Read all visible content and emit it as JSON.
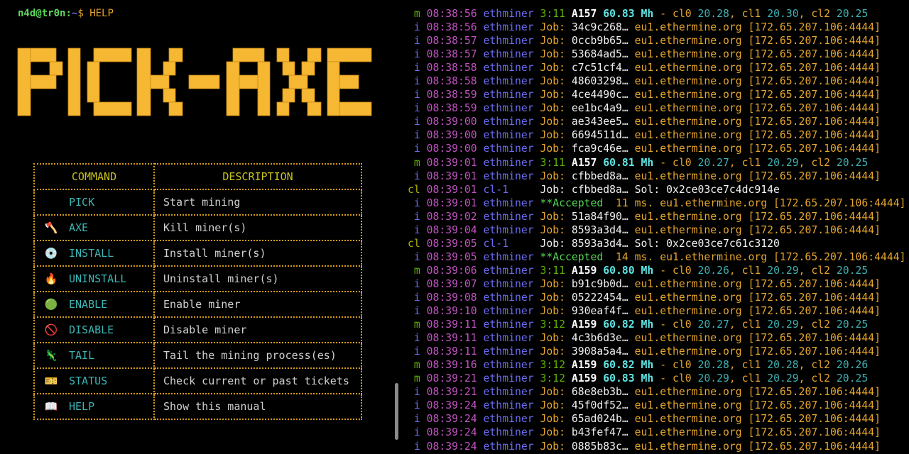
{
  "prompt": {
    "user": "n4d@tr0n",
    "colon": ":",
    "path": "~",
    "dollar": "$",
    "command": "HELP"
  },
  "logo": {
    "text": "PICK-AXE",
    "color": "#f6b733"
  },
  "table": {
    "headers": [
      "COMMAND",
      "DESCRIPTION"
    ],
    "rows": [
      {
        "icon": "pick-icon",
        "glyph": "⛏",
        "command": "PICK",
        "description": "Start mining"
      },
      {
        "icon": "axe-icon",
        "glyph": "🪓",
        "command": "AXE",
        "description": "Kill miner(s)"
      },
      {
        "icon": "disc-icon",
        "glyph": "💿",
        "command": "INSTALL",
        "description": "Install miner(s)"
      },
      {
        "icon": "fire-icon",
        "glyph": "🔥",
        "command": "UNINSTALL",
        "description": "Uninstall miner(s)"
      },
      {
        "icon": "green-circle-icon",
        "glyph": "🟢",
        "command": "ENABLE",
        "description": "Enable miner"
      },
      {
        "icon": "prohibited-icon",
        "glyph": "🚫",
        "command": "DISABLE",
        "description": "Disable miner"
      },
      {
        "icon": "lizard-icon",
        "glyph": "🦎",
        "command": "TAIL",
        "description": "Tail the mining process(es)"
      },
      {
        "icon": "ticket-icon",
        "glyph": "🎫",
        "command": "STATUS",
        "description": "Check current or past tickets"
      },
      {
        "icon": "book-icon",
        "glyph": "📖",
        "command": "HELP",
        "description": "Show this manual"
      }
    ]
  },
  "log": [
    {
      "kind": "m",
      "time": "08:38:56",
      "src": "ethminer",
      "uptime": "3:11",
      "shares": "A157",
      "rate": "60.83 Mh",
      "sep": "-",
      "gpus": [
        {
          "name": "cl0",
          "temp": "20.28"
        },
        {
          "name": "cl1",
          "temp": "20.30"
        },
        {
          "name": "cl2",
          "temp": "20.25"
        }
      ]
    },
    {
      "kind": "i",
      "time": "08:38:56",
      "src": "ethminer",
      "label": "Job:",
      "hash": "34c9c268…",
      "host": "eu1.ethermine.org",
      "addr": "[172.65.207.106:4444]"
    },
    {
      "kind": "i",
      "time": "08:38:57",
      "src": "ethminer",
      "label": "Job:",
      "hash": "0ccb9b65…",
      "host": "eu1.ethermine.org",
      "addr": "[172.65.207.106:4444]"
    },
    {
      "kind": "i",
      "time": "08:38:57",
      "src": "ethminer",
      "label": "Job:",
      "hash": "53684ad5…",
      "host": "eu1.ethermine.org",
      "addr": "[172.65.207.106:4444]"
    },
    {
      "kind": "i",
      "time": "08:38:58",
      "src": "ethminer",
      "label": "Job:",
      "hash": "c7c51cf4…",
      "host": "eu1.ethermine.org",
      "addr": "[172.65.207.106:4444]"
    },
    {
      "kind": "i",
      "time": "08:38:58",
      "src": "ethminer",
      "label": "Job:",
      "hash": "48603298…",
      "host": "eu1.ethermine.org",
      "addr": "[172.65.207.106:4444]"
    },
    {
      "kind": "i",
      "time": "08:38:59",
      "src": "ethminer",
      "label": "Job:",
      "hash": "4ce4490c…",
      "host": "eu1.ethermine.org",
      "addr": "[172.65.207.106:4444]"
    },
    {
      "kind": "i",
      "time": "08:38:59",
      "src": "ethminer",
      "label": "Job:",
      "hash": "ee1bc4a9…",
      "host": "eu1.ethermine.org",
      "addr": "[172.65.207.106:4444]"
    },
    {
      "kind": "i",
      "time": "08:39:00",
      "src": "ethminer",
      "label": "Job:",
      "hash": "ae343ee5…",
      "host": "eu1.ethermine.org",
      "addr": "[172.65.207.106:4444]"
    },
    {
      "kind": "i",
      "time": "08:39:00",
      "src": "ethminer",
      "label": "Job:",
      "hash": "6694511d…",
      "host": "eu1.ethermine.org",
      "addr": "[172.65.207.106:4444]"
    },
    {
      "kind": "i",
      "time": "08:39:00",
      "src": "ethminer",
      "label": "Job:",
      "hash": "fca9c46e…",
      "host": "eu1.ethermine.org",
      "addr": "[172.65.207.106:4444]"
    },
    {
      "kind": "m",
      "time": "08:39:01",
      "src": "ethminer",
      "uptime": "3:11",
      "shares": "A157",
      "rate": "60.81 Mh",
      "sep": "-",
      "gpus": [
        {
          "name": "cl0",
          "temp": "20.27"
        },
        {
          "name": "cl1",
          "temp": "20.29"
        },
        {
          "name": "cl2",
          "temp": "20.25"
        }
      ]
    },
    {
      "kind": "i",
      "time": "08:39:01",
      "src": "ethminer",
      "label": "Job:",
      "hash": "cfbbed8a…",
      "host": "eu1.ethermine.org",
      "addr": "[172.65.207.106:4444]"
    },
    {
      "kind": "cl",
      "time": "08:39:01",
      "src": "cl-1",
      "label": "Job:",
      "hash": "cfbbed8a…",
      "sol_label": "Sol:",
      "sol": "0x2ce03ce7c4dc914e"
    },
    {
      "kind": "a",
      "time": "08:39:01",
      "src": "ethminer",
      "status": "**Accepted",
      "latency": "11 ms.",
      "host": "eu1.ethermine.org",
      "addr": "[172.65.207.106:4444]"
    },
    {
      "kind": "i",
      "time": "08:39:02",
      "src": "ethminer",
      "label": "Job:",
      "hash": "51a84f90…",
      "host": "eu1.ethermine.org",
      "addr": "[172.65.207.106:4444]"
    },
    {
      "kind": "i",
      "time": "08:39:04",
      "src": "ethminer",
      "label": "Job:",
      "hash": "8593a3d4…",
      "host": "eu1.ethermine.org",
      "addr": "[172.65.207.106:4444]"
    },
    {
      "kind": "cl",
      "time": "08:39:05",
      "src": "cl-1",
      "label": "Job:",
      "hash": "8593a3d4…",
      "sol_label": "Sol:",
      "sol": "0x2ce03ce7c61c3120"
    },
    {
      "kind": "a",
      "time": "08:39:05",
      "src": "ethminer",
      "status": "**Accepted",
      "latency": "14 ms.",
      "host": "eu1.ethermine.org",
      "addr": "[172.65.207.106:4444]"
    },
    {
      "kind": "m",
      "time": "08:39:06",
      "src": "ethminer",
      "uptime": "3:11",
      "shares": "A159",
      "rate": "60.80 Mh",
      "sep": "-",
      "gpus": [
        {
          "name": "cl0",
          "temp": "20.26"
        },
        {
          "name": "cl1",
          "temp": "20.29"
        },
        {
          "name": "cl2",
          "temp": "20.25"
        }
      ]
    },
    {
      "kind": "i",
      "time": "08:39:07",
      "src": "ethminer",
      "label": "Job:",
      "hash": "b91c9b0d…",
      "host": "eu1.ethermine.org",
      "addr": "[172.65.207.106:4444]"
    },
    {
      "kind": "i",
      "time": "08:39:08",
      "src": "ethminer",
      "label": "Job:",
      "hash": "05222454…",
      "host": "eu1.ethermine.org",
      "addr": "[172.65.207.106:4444]"
    },
    {
      "kind": "i",
      "time": "08:39:10",
      "src": "ethminer",
      "label": "Job:",
      "hash": "930eaf4f…",
      "host": "eu1.ethermine.org",
      "addr": "[172.65.207.106:4444]"
    },
    {
      "kind": "m",
      "time": "08:39:11",
      "src": "ethminer",
      "uptime": "3:12",
      "shares": "A159",
      "rate": "60.82 Mh",
      "sep": "-",
      "gpus": [
        {
          "name": "cl0",
          "temp": "20.27"
        },
        {
          "name": "cl1",
          "temp": "20.29"
        },
        {
          "name": "cl2",
          "temp": "20.25"
        }
      ]
    },
    {
      "kind": "i",
      "time": "08:39:11",
      "src": "ethminer",
      "label": "Job:",
      "hash": "4c3b6d3e…",
      "host": "eu1.ethermine.org",
      "addr": "[172.65.207.106:4444]"
    },
    {
      "kind": "i",
      "time": "08:39:11",
      "src": "ethminer",
      "label": "Job:",
      "hash": "3908a5a4…",
      "host": "eu1.ethermine.org",
      "addr": "[172.65.207.106:4444]"
    },
    {
      "kind": "m",
      "time": "08:39:16",
      "src": "ethminer",
      "uptime": "3:12",
      "shares": "A159",
      "rate": "60.82 Mh",
      "sep": "-",
      "gpus": [
        {
          "name": "cl0",
          "temp": "20.28"
        },
        {
          "name": "cl1",
          "temp": "20.28"
        },
        {
          "name": "cl2",
          "temp": "20.26"
        }
      ]
    },
    {
      "kind": "m",
      "time": "08:39:21",
      "src": "ethminer",
      "uptime": "3:12",
      "shares": "A159",
      "rate": "60.83 Mh",
      "sep": "-",
      "gpus": [
        {
          "name": "cl0",
          "temp": "20.29"
        },
        {
          "name": "cl1",
          "temp": "20.29"
        },
        {
          "name": "cl2",
          "temp": "20.25"
        }
      ]
    },
    {
      "kind": "i",
      "time": "08:39:21",
      "src": "ethminer",
      "label": "Job:",
      "hash": "68e8eb3b…",
      "host": "eu1.ethermine.org",
      "addr": "[172.65.207.106:4444]"
    },
    {
      "kind": "i",
      "time": "08:39:24",
      "src": "ethminer",
      "label": "Job:",
      "hash": "45f0df52…",
      "host": "eu1.ethermine.org",
      "addr": "[172.65.207.106:4444]"
    },
    {
      "kind": "i",
      "time": "08:39:24",
      "src": "ethminer",
      "label": "Job:",
      "hash": "65ad024b…",
      "host": "eu1.ethermine.org",
      "addr": "[172.65.207.106:4444]"
    },
    {
      "kind": "i",
      "time": "08:39:24",
      "src": "ethminer",
      "label": "Job:",
      "hash": "b43fef47…",
      "host": "eu1.ethermine.org",
      "addr": "[172.65.207.106:4444]"
    },
    {
      "kind": "i",
      "time": "08:39:24",
      "src": "ethminer",
      "label": "Job:",
      "hash": "0885b83c…",
      "host": "eu1.ethermine.org",
      "addr": "[172.65.207.106:4444]"
    }
  ],
  "kind_labels": {
    "m": "m",
    "i": "i",
    "a": "i",
    "cl": "cl"
  }
}
